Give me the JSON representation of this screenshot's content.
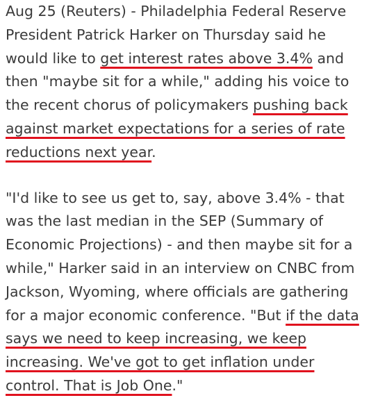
{
  "article": {
    "paragraph1": {
      "text_before": "Aug 25 (Reuters) - Philadelphia Federal Reserve President Patrick Harker on Thursday said he would like to ",
      "underline1": "get interest rates above 3.4%",
      "text_middle": " and then \"maybe sit for a while,\" adding his voice to the recent chorus of policymakers ",
      "underline2": "pushing back against market expectations for a series of rate reductions next year",
      "text_end": "."
    },
    "paragraph2": {
      "text_before": "\"I'd like to see us get to, say, above 3.4% - that was the last median in the SEP (Summary of Economic Projections) - and then maybe sit for a while,\" Harker said in an interview on CNBC from Jackson, Wyoming, where officials are gathering for a major economic conference. \"But ",
      "underline": "if the data says we need to keep increasing, we keep increasing. We've got to get inflation under control. That is Job One",
      "text_end": ".\""
    }
  },
  "colors": {
    "text": "#3a3a3a",
    "underline": "#e0121e",
    "background": "#ffffff"
  }
}
